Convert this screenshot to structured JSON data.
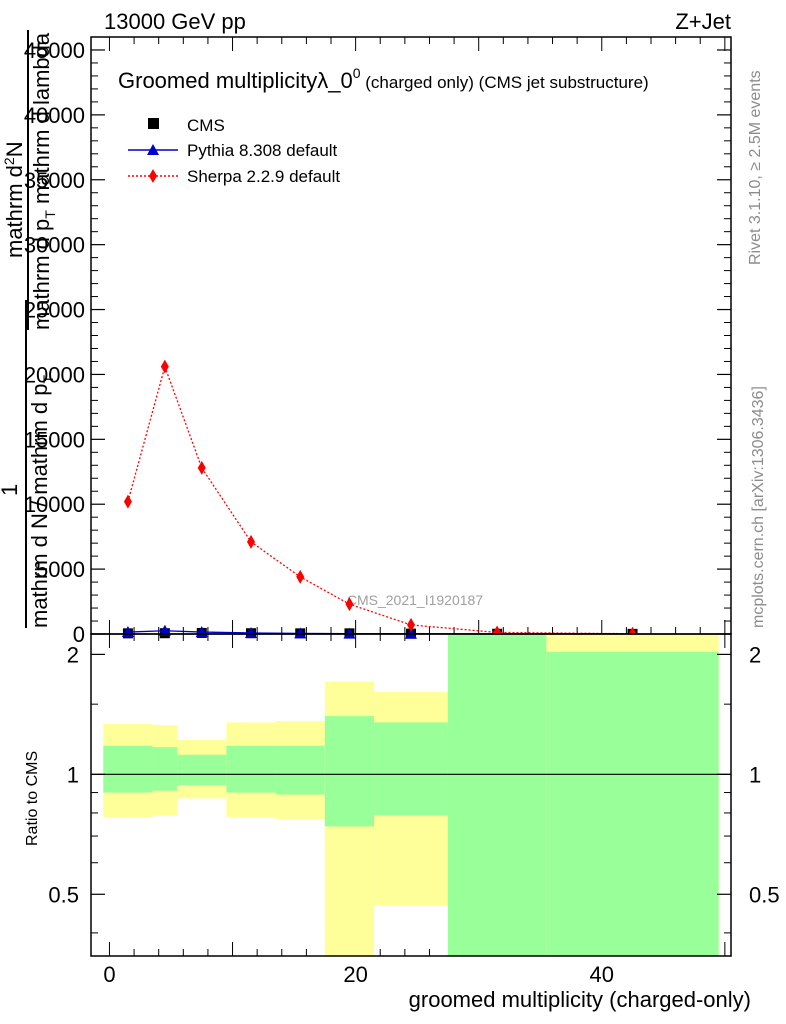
{
  "header": {
    "energy_label": "13000 GeV pp",
    "process_label": "Z+Jet"
  },
  "side_labels": {
    "rivet": "Rivet 3.1.10, ≥ 2.5M events",
    "mcplots": "mcplots.cern.ch [arXiv:1306.3436]"
  },
  "watermark": "CMS_2021_I1920187",
  "chart_data": [
    {
      "type": "line",
      "title_main": "Groomed multiplicityλ_0",
      "title_sup": "0",
      "title_suffix": " (charged only) (CMS jet substructure)",
      "ylabel_num_1": "mathrm d",
      "ylabel_num_sup": "2",
      "ylabel_num_2": "N",
      "ylabel_den_1": "mathrm d p",
      "ylabel_den_sub": "T",
      "ylabel_den_2": " mathrm d lambda",
      "ylabel_frac_1": "1",
      "ylabel_frac_2": "mathrm d N / mathrm d p",
      "ylabel_frac_sub": "T",
      "xlim": [
        -1.5,
        50.5
      ],
      "ylim": [
        0,
        46000
      ],
      "yticks": [
        0,
        5000,
        10000,
        15000,
        20000,
        25000,
        30000,
        35000,
        40000,
        45000
      ],
      "yticklabels": [
        "0",
        "5000",
        "10000",
        "15000",
        "20000",
        "25000",
        "30000",
        "35000",
        "40000",
        "45000"
      ],
      "legend_position": "top-left",
      "series": [
        {
          "name": "CMS",
          "color": "#000000",
          "marker": "square",
          "x": [
            1.5,
            4.5,
            7.5,
            11.5,
            15.5,
            19.5,
            24.5,
            31.5,
            42.5
          ],
          "y": [
            50,
            60,
            80,
            60,
            50,
            50,
            30,
            20,
            10
          ]
        },
        {
          "name": "Pythia 8.308 default",
          "color": "#0000cc",
          "marker": "triangle",
          "x": [
            1.5,
            4.5,
            7.5,
            11.5,
            15.5,
            19.5,
            24.5,
            31.5,
            42.5
          ],
          "y": [
            150,
            250,
            150,
            80,
            50,
            30,
            15,
            8,
            3
          ]
        },
        {
          "name": "Sherpa 2.2.9 default",
          "color": "#ff0000",
          "marker": "diamond",
          "x": [
            1.5,
            4.5,
            7.5,
            11.5,
            15.5,
            19.5,
            24.5,
            31.5,
            42.5
          ],
          "y": [
            10200,
            20600,
            12800,
            7100,
            4400,
            2300,
            700,
            120,
            20
          ]
        }
      ]
    },
    {
      "type": "area",
      "ylabel": "Ratio to CMS",
      "xlabel": "groomed multiplicity (charged-only)",
      "xlim": [
        -1.5,
        50.5
      ],
      "ylim": [
        0.35,
        2.25
      ],
      "yticks": [
        0.5,
        1,
        2
      ],
      "yticklabels": [
        "0.5",
        "1",
        "2"
      ],
      "xticks": [
        0,
        20,
        40
      ],
      "xticklabels": [
        "0",
        "20",
        "40"
      ],
      "reference_line": 1,
      "bands": [
        {
          "x0": -0.5,
          "x1": 3.5,
          "yellow": [
            0.78,
            1.34
          ],
          "green": [
            0.9,
            1.18
          ]
        },
        {
          "x0": 3.5,
          "x1": 5.5,
          "yellow": [
            0.79,
            1.33
          ],
          "green": [
            0.91,
            1.17
          ]
        },
        {
          "x0": 5.5,
          "x1": 9.5,
          "yellow": [
            0.87,
            1.22
          ],
          "green": [
            0.94,
            1.12
          ]
        },
        {
          "x0": 9.5,
          "x1": 13.5,
          "yellow": [
            0.78,
            1.35
          ],
          "green": [
            0.9,
            1.18
          ]
        },
        {
          "x0": 13.5,
          "x1": 17.5,
          "yellow": [
            0.77,
            1.36
          ],
          "green": [
            0.89,
            1.18
          ]
        },
        {
          "x0": 17.5,
          "x1": 21.5,
          "yellow": [
            0.35,
            1.71
          ],
          "green": [
            0.74,
            1.4
          ]
        },
        {
          "x0": 21.5,
          "x1": 27.5,
          "yellow": [
            0.47,
            1.61
          ],
          "green": [
            0.79,
            1.35
          ]
        },
        {
          "x0": 27.5,
          "x1": 35.5,
          "yellow": [
            0.35,
            2.25
          ],
          "green": [
            0.35,
            2.25
          ]
        },
        {
          "x0": 35.5,
          "x1": 49.5,
          "yellow": [
            0.35,
            2.25
          ],
          "green": [
            0.35,
            2.03
          ]
        }
      ]
    }
  ]
}
